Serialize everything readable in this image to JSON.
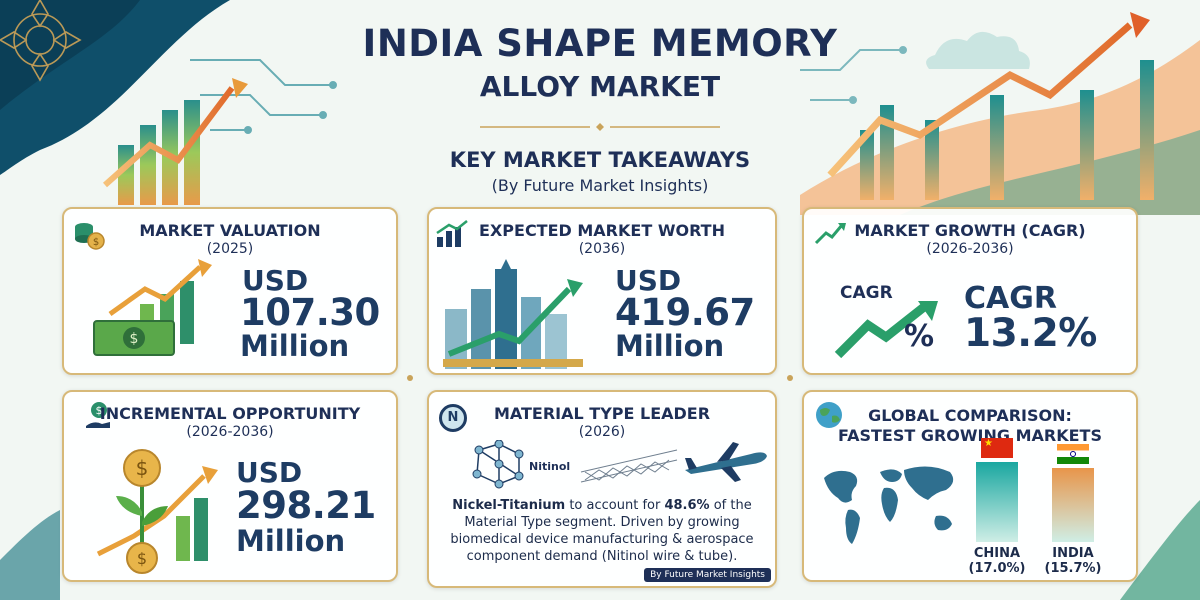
{
  "header": {
    "title_line1": "INDIA SHAPE MEMORY",
    "title_line2": "ALLOY MARKET",
    "subtitle": "KEY MARKET TAKEAWAYS",
    "source_line": "(By Future Market Insights)"
  },
  "cards": {
    "valuation": {
      "title": "MARKET VALUATION",
      "year": "(2025)",
      "usd": "USD",
      "value": "107.30",
      "unit": "Million",
      "icon": "coins-icon"
    },
    "expected": {
      "title": "EXPECTED MARKET WORTH",
      "year": "(2036)",
      "usd": "USD",
      "value": "419.67",
      "unit": "Million",
      "icon": "growth-chart-icon"
    },
    "cagr": {
      "title": "MARKET GROWTH (CAGR)",
      "year": "(2026-2036)",
      "icon_label": "CAGR",
      "percent_sign": "%",
      "label": "CAGR",
      "value": "13.2%",
      "icon": "trend-arrow-icon"
    },
    "incremental": {
      "title": "INCREMENTAL OPPORTUNITY",
      "year": "(2026-2036)",
      "usd": "USD",
      "value": "298.21",
      "unit": "Million",
      "icon": "money-hand-icon"
    },
    "material": {
      "title": "MATERIAL TYPE LEADER",
      "year": "(2026)",
      "icon_badge": "N",
      "molecule_label": "Nitinol",
      "desc_bold1": "Nickel-Titanium",
      "desc_part1": " to account for ",
      "desc_bold2": "48.6%",
      "desc_part2": " of the Material Type segment. Driven by growing biomedical device manufacturing & aerospace component demand (Nitinol wire & tube).",
      "source_tag": "By Future Market Insights",
      "icon": "nitinol-badge-icon"
    },
    "global": {
      "title_line1": "GLOBAL COMPARISON:",
      "title_line2": "FASTEST GROWING MARKETS",
      "icon": "globe-icon"
    }
  },
  "chart_data": {
    "type": "bar",
    "categories": [
      "CHINA",
      "INDIA"
    ],
    "values": [
      17.0,
      15.7
    ],
    "value_labels": [
      "(17.0%)",
      "(15.7%)"
    ],
    "colors": [
      "#1aa7a0",
      "#e8954a"
    ],
    "title": "",
    "xlabel": "",
    "ylabel": "",
    "ylim": [
      0,
      17.0
    ]
  }
}
